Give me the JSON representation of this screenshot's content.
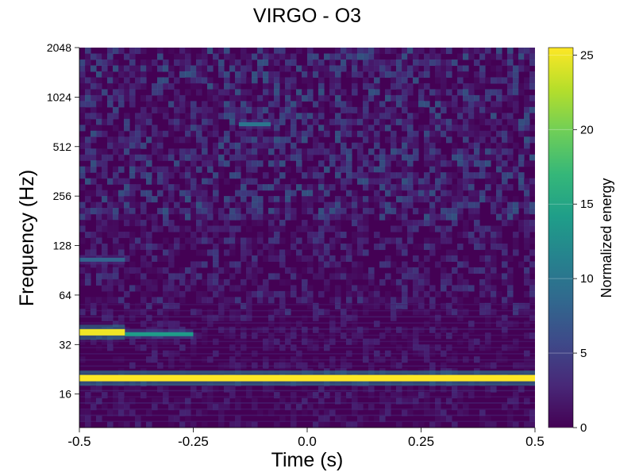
{
  "colors": {
    "colormap": "viridis",
    "viridis_stops": [
      "#440154",
      "#482878",
      "#3e4989",
      "#31688e",
      "#26828e",
      "#1f9e89",
      "#35b779",
      "#6ece58",
      "#b5de2b",
      "#fde725"
    ]
  },
  "chart_data": {
    "type": "heatmap",
    "title": "VIRGO - O3",
    "xlabel": "Time (s)",
    "ylabel": "Frequency (Hz)",
    "xlim": [
      -0.5,
      0.5
    ],
    "ylim": [
      10,
      2048
    ],
    "yscale": "log2",
    "x_ticks": [
      -0.5,
      -0.25,
      0.0,
      0.25,
      0.5
    ],
    "x_tick_labels": [
      "-0.5",
      "-0.25",
      "0.0",
      "0.25",
      "0.5"
    ],
    "y_ticks": [
      16,
      32,
      64,
      128,
      256,
      512,
      1024,
      2048
    ],
    "y_tick_labels": [
      "16",
      "32",
      "64",
      "128",
      "256",
      "512",
      "1024",
      "2048"
    ],
    "colorbar": {
      "label": "Normalized energy",
      "range": [
        0,
        25.5
      ],
      "ticks": [
        0,
        5,
        10,
        15,
        20,
        25
      ],
      "tick_labels": [
        "0",
        "5",
        "10",
        "15",
        "20",
        "25"
      ]
    },
    "features": [
      {
        "frequency_hz": 20,
        "t_start": -0.5,
        "t_end": 0.5,
        "energy": 25.5
      },
      {
        "frequency_hz": 38,
        "t_start": -0.5,
        "t_end": -0.4,
        "energy": 25
      },
      {
        "frequency_hz": 37,
        "t_start": -0.4,
        "t_end": -0.25,
        "energy": 14
      },
      {
        "frequency_hz": 105,
        "t_start": -0.5,
        "t_end": -0.4,
        "energy": 8
      },
      {
        "frequency_hz": 700,
        "t_start": -0.15,
        "t_end": -0.08,
        "energy": 10
      }
    ]
  }
}
